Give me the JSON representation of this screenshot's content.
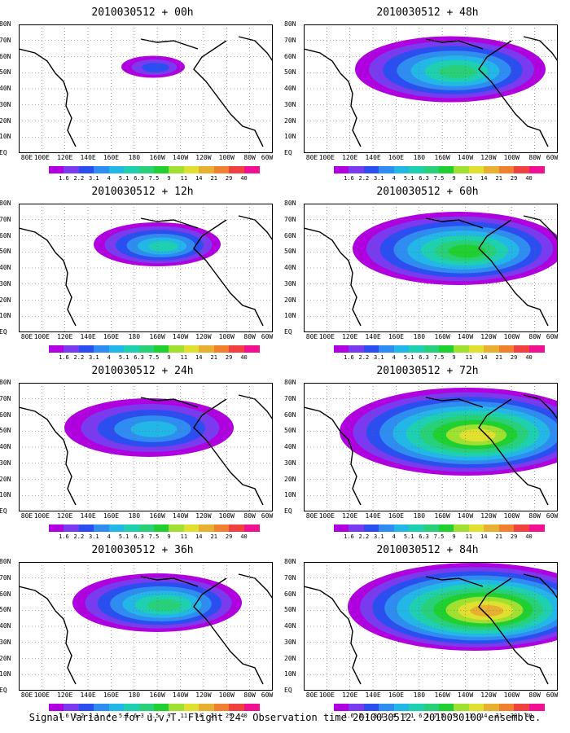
{
  "figure": {
    "caption": "Signal Variance for u,v,T. Flight 24. Observation time 2010030512. 2010030100 ensemble."
  },
  "axes": {
    "lon_labels": [
      "80E",
      "100E",
      "120E",
      "140E",
      "160E",
      "180",
      "160W",
      "140W",
      "120W",
      "100W",
      "80W",
      "60W"
    ],
    "lat_labels": [
      "80N",
      "70N",
      "60N",
      "50N",
      "40N",
      "30N",
      "20N",
      "10N",
      "EQ"
    ]
  },
  "colorbar": {
    "values": [
      "1.6",
      "2.2",
      "3.1",
      "4",
      "5.1",
      "6.3",
      "7.5",
      "9",
      "11",
      "14",
      "21",
      "29",
      "40"
    ],
    "colors": [
      "#b000e0",
      "#7a3bf0",
      "#2b4ef0",
      "#2f8cf0",
      "#23b7e8",
      "#1fd0b0",
      "#28d07a",
      "#20d030",
      "#a0e030",
      "#e0e030",
      "#e8b030",
      "#f08030",
      "#f04040",
      "#f01090"
    ]
  },
  "panels": [
    {
      "title": "2010030512 + 00h",
      "blobs": [
        {
          "cx": 165,
          "cy": 52,
          "r": 15,
          "level": 2
        }
      ]
    },
    {
      "title": "2010030512 + 48h",
      "blobs": [
        {
          "cx": 180,
          "cy": 55,
          "r": 45,
          "level": 6
        }
      ]
    },
    {
      "title": "2010030512 + 12h",
      "blobs": [
        {
          "cx": 170,
          "cy": 50,
          "r": 30,
          "level": 5
        }
      ]
    },
    {
      "title": "2010030512 + 60h",
      "blobs": [
        {
          "cx": 190,
          "cy": 55,
          "r": 50,
          "level": 7
        }
      ]
    },
    {
      "title": "2010030512 + 24h",
      "blobs": [
        {
          "cx": 160,
          "cy": 55,
          "r": 40,
          "level": 4
        }
      ]
    },
    {
      "title": "2010030512 + 72h",
      "blobs": [
        {
          "cx": 200,
          "cy": 60,
          "r": 60,
          "level": 9
        }
      ]
    },
    {
      "title": "2010030512 + 36h",
      "blobs": [
        {
          "cx": 170,
          "cy": 50,
          "r": 40,
          "level": 6
        }
      ]
    },
    {
      "title": "2010030512 + 84h",
      "blobs": [
        {
          "cx": 210,
          "cy": 55,
          "r": 60,
          "level": 10
        }
      ]
    }
  ]
}
